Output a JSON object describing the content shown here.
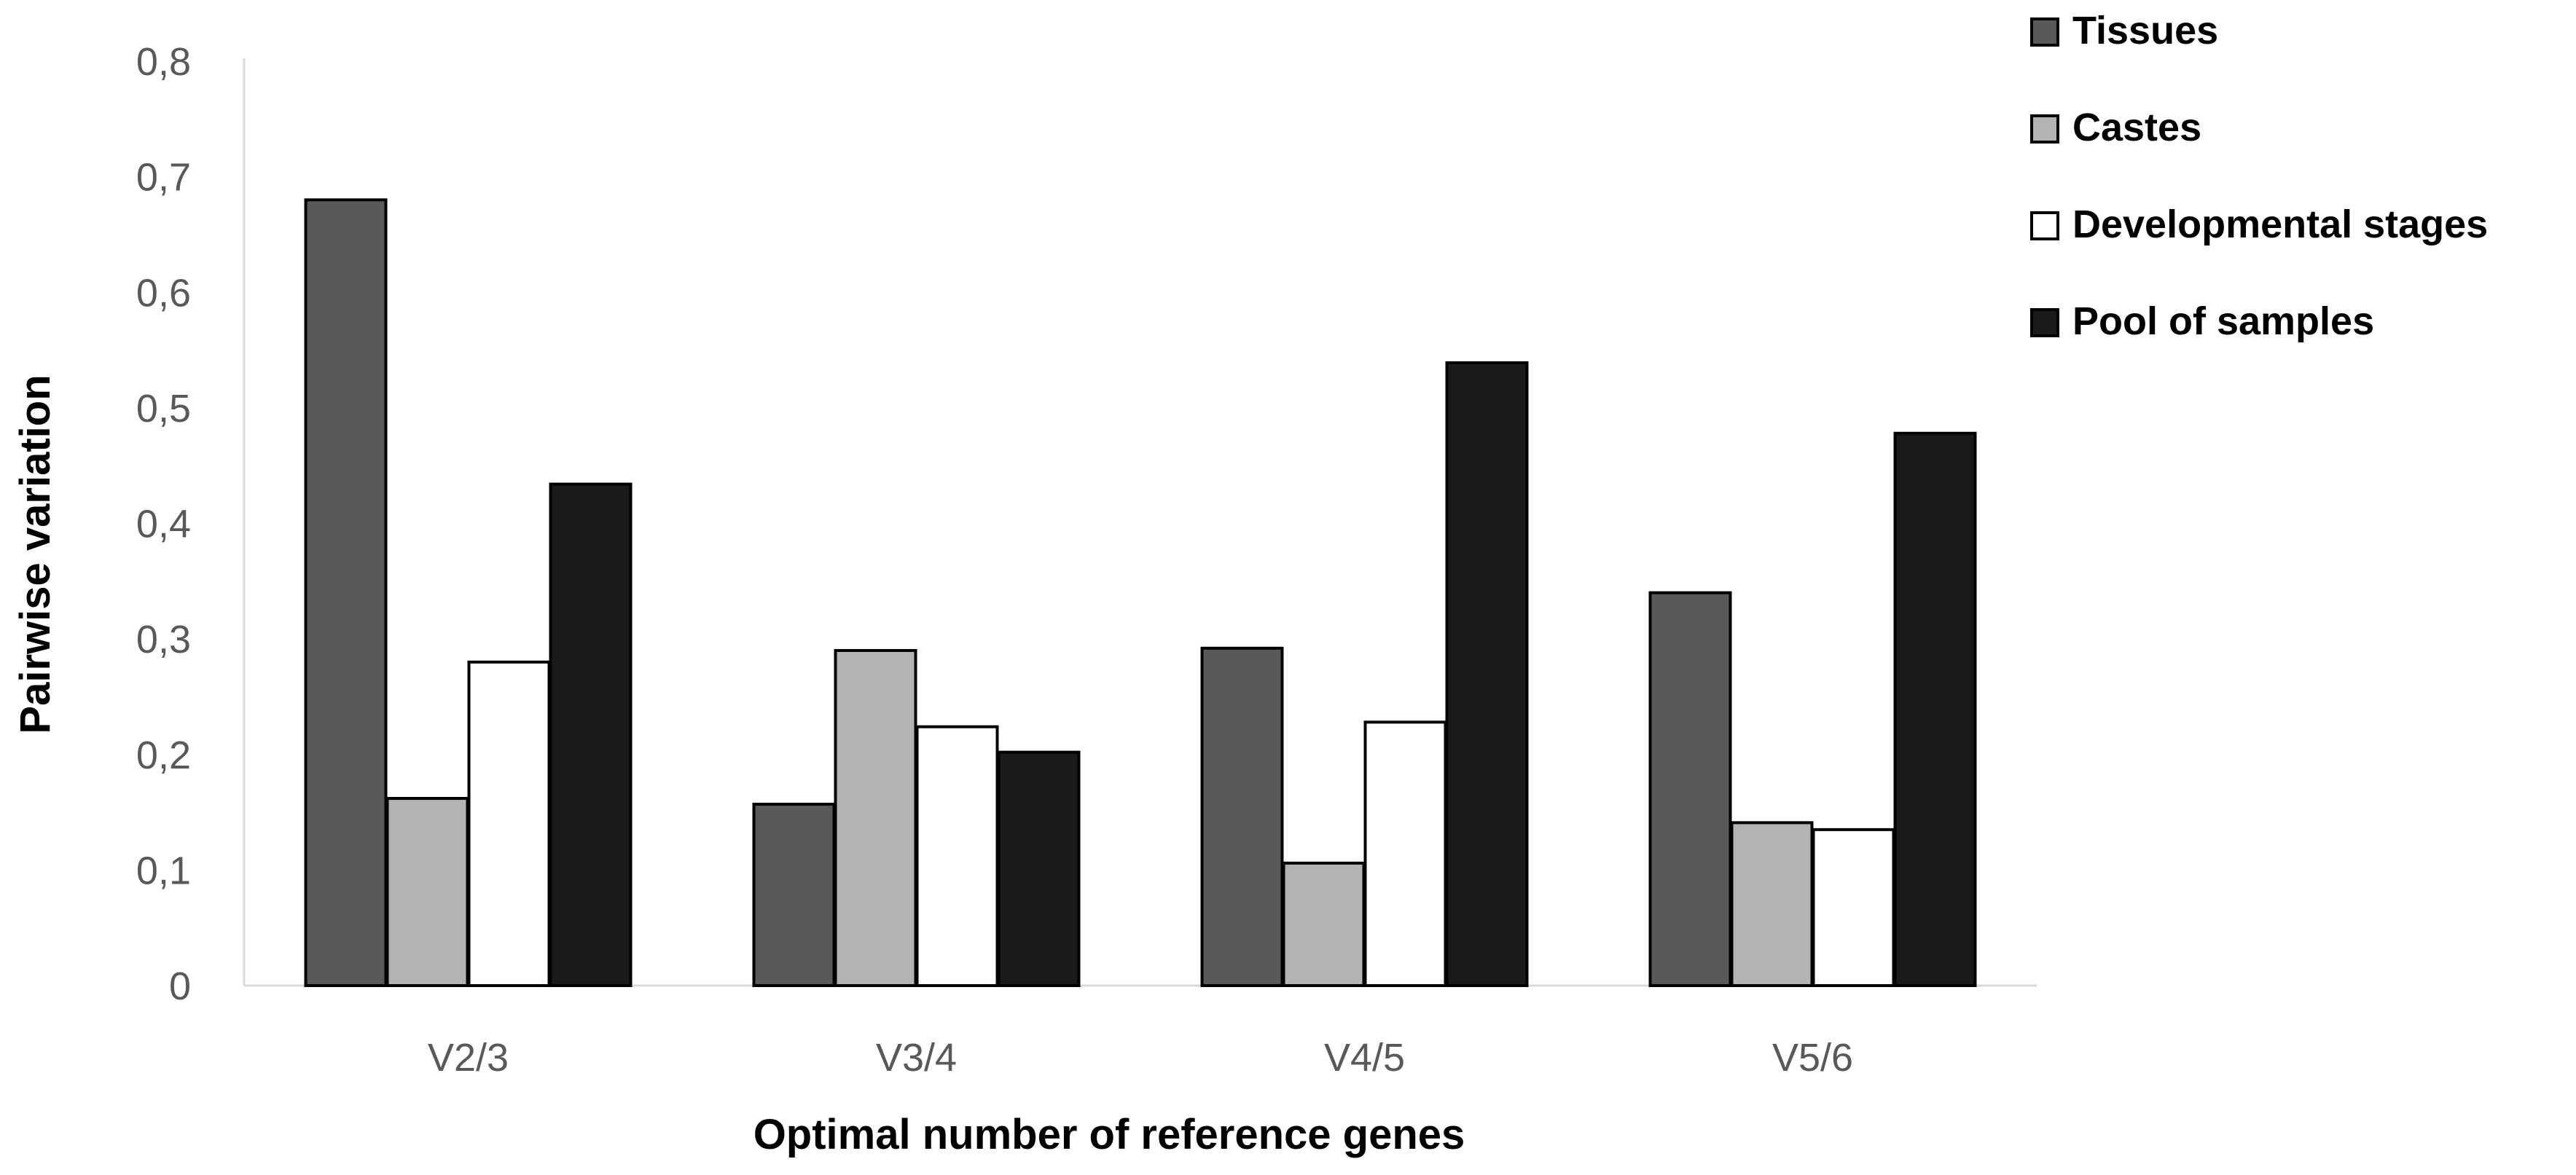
{
  "chart_data": {
    "type": "bar",
    "title": "",
    "xlabel": "Optimal number of reference genes",
    "ylabel": "Pairwise variation",
    "categories": [
      "V2/3",
      "V3/4",
      "V4/5",
      "V5/6"
    ],
    "y_ticks": [
      "0",
      "0,1",
      "0,2",
      "0,3",
      "0,4",
      "0,5",
      "0,6",
      "0,7",
      "0,8"
    ],
    "ylim": [
      0,
      0.8
    ],
    "grid": false,
    "legend_position": "top-right",
    "series": [
      {
        "name": "Tissues",
        "color": "#595959",
        "values": [
          0.68,
          0.157,
          0.292,
          0.34
        ]
      },
      {
        "name": "Castes",
        "color": "#b3b3b3",
        "values": [
          0.162,
          0.29,
          0.106,
          0.141
        ]
      },
      {
        "name": "Developmental stages",
        "color": "#ffffff",
        "values": [
          0.28,
          0.224,
          0.228,
          0.135
        ]
      },
      {
        "name": "Pool of samples",
        "color": "#1a1a1a",
        "values": [
          0.434,
          0.202,
          0.539,
          0.478
        ]
      }
    ]
  }
}
